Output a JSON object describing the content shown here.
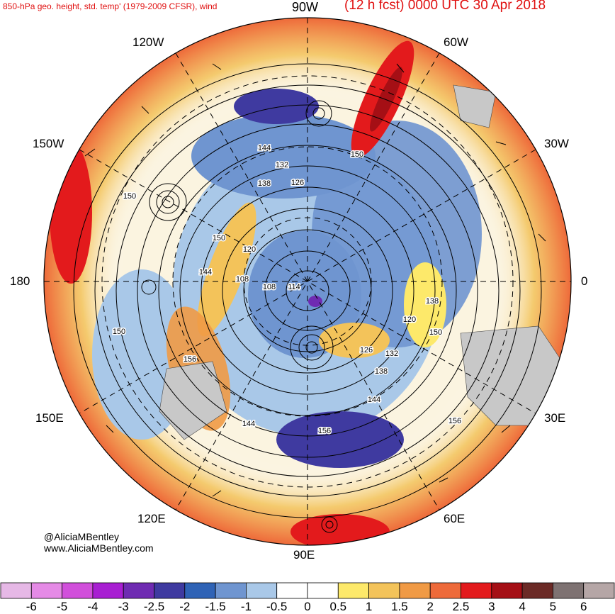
{
  "title_left": "850-hPa geo. height, std. temp' (1979-2009 CFSR), wind",
  "title_right": "(12 h fcst) 0000 UTC 30 Apr 2018",
  "credit_handle": "@AliciaMBentley",
  "credit_url": "www.AliciaMBentley.com",
  "longitude_labels": {
    "w90": "90W",
    "w60": "60W",
    "w120": "120W",
    "w150": "150W",
    "w30": "30W",
    "e0": "0",
    "w180": "180",
    "e150": "150E",
    "e30": "30E",
    "e120": "120E",
    "e60": "60E",
    "e90": "90E"
  },
  "contour_labels": [
    "150",
    "144",
    "132",
    "126",
    "138",
    "150",
    "150",
    "120",
    "144",
    "108",
    "108",
    "114",
    "138",
    "120",
    "150",
    "126",
    "132",
    "138",
    "144",
    "150",
    "156",
    "144",
    "156",
    "156"
  ],
  "colorbar": {
    "colors": [
      "#e6b8e6",
      "#e58ae6",
      "#d14fdb",
      "#a81ed2",
      "#6f2bb2",
      "#3f3aa0",
      "#2f63b6",
      "#6f95d0",
      "#a9c8e8",
      "#ffffff",
      "#ffffff",
      "#fde96a",
      "#f3c35a",
      "#f09a45",
      "#ee6a3a",
      "#e31a1c",
      "#a50f15",
      "#6b2a26",
      "#7e7272",
      "#b5a6a6"
    ],
    "labels": [
      "-6",
      "-5",
      "-4",
      "-3",
      "-2.5",
      "-2",
      "-1.5",
      "-1",
      "-0.5",
      "0",
      "0.5",
      "1",
      "1.5",
      "2",
      "2.5",
      "3",
      "4",
      "5",
      "6"
    ]
  },
  "landmass_color": "#c8c8c8",
  "ocean_color": "#ffffff",
  "contour_color": "#000000",
  "title_color": "#e01010"
}
